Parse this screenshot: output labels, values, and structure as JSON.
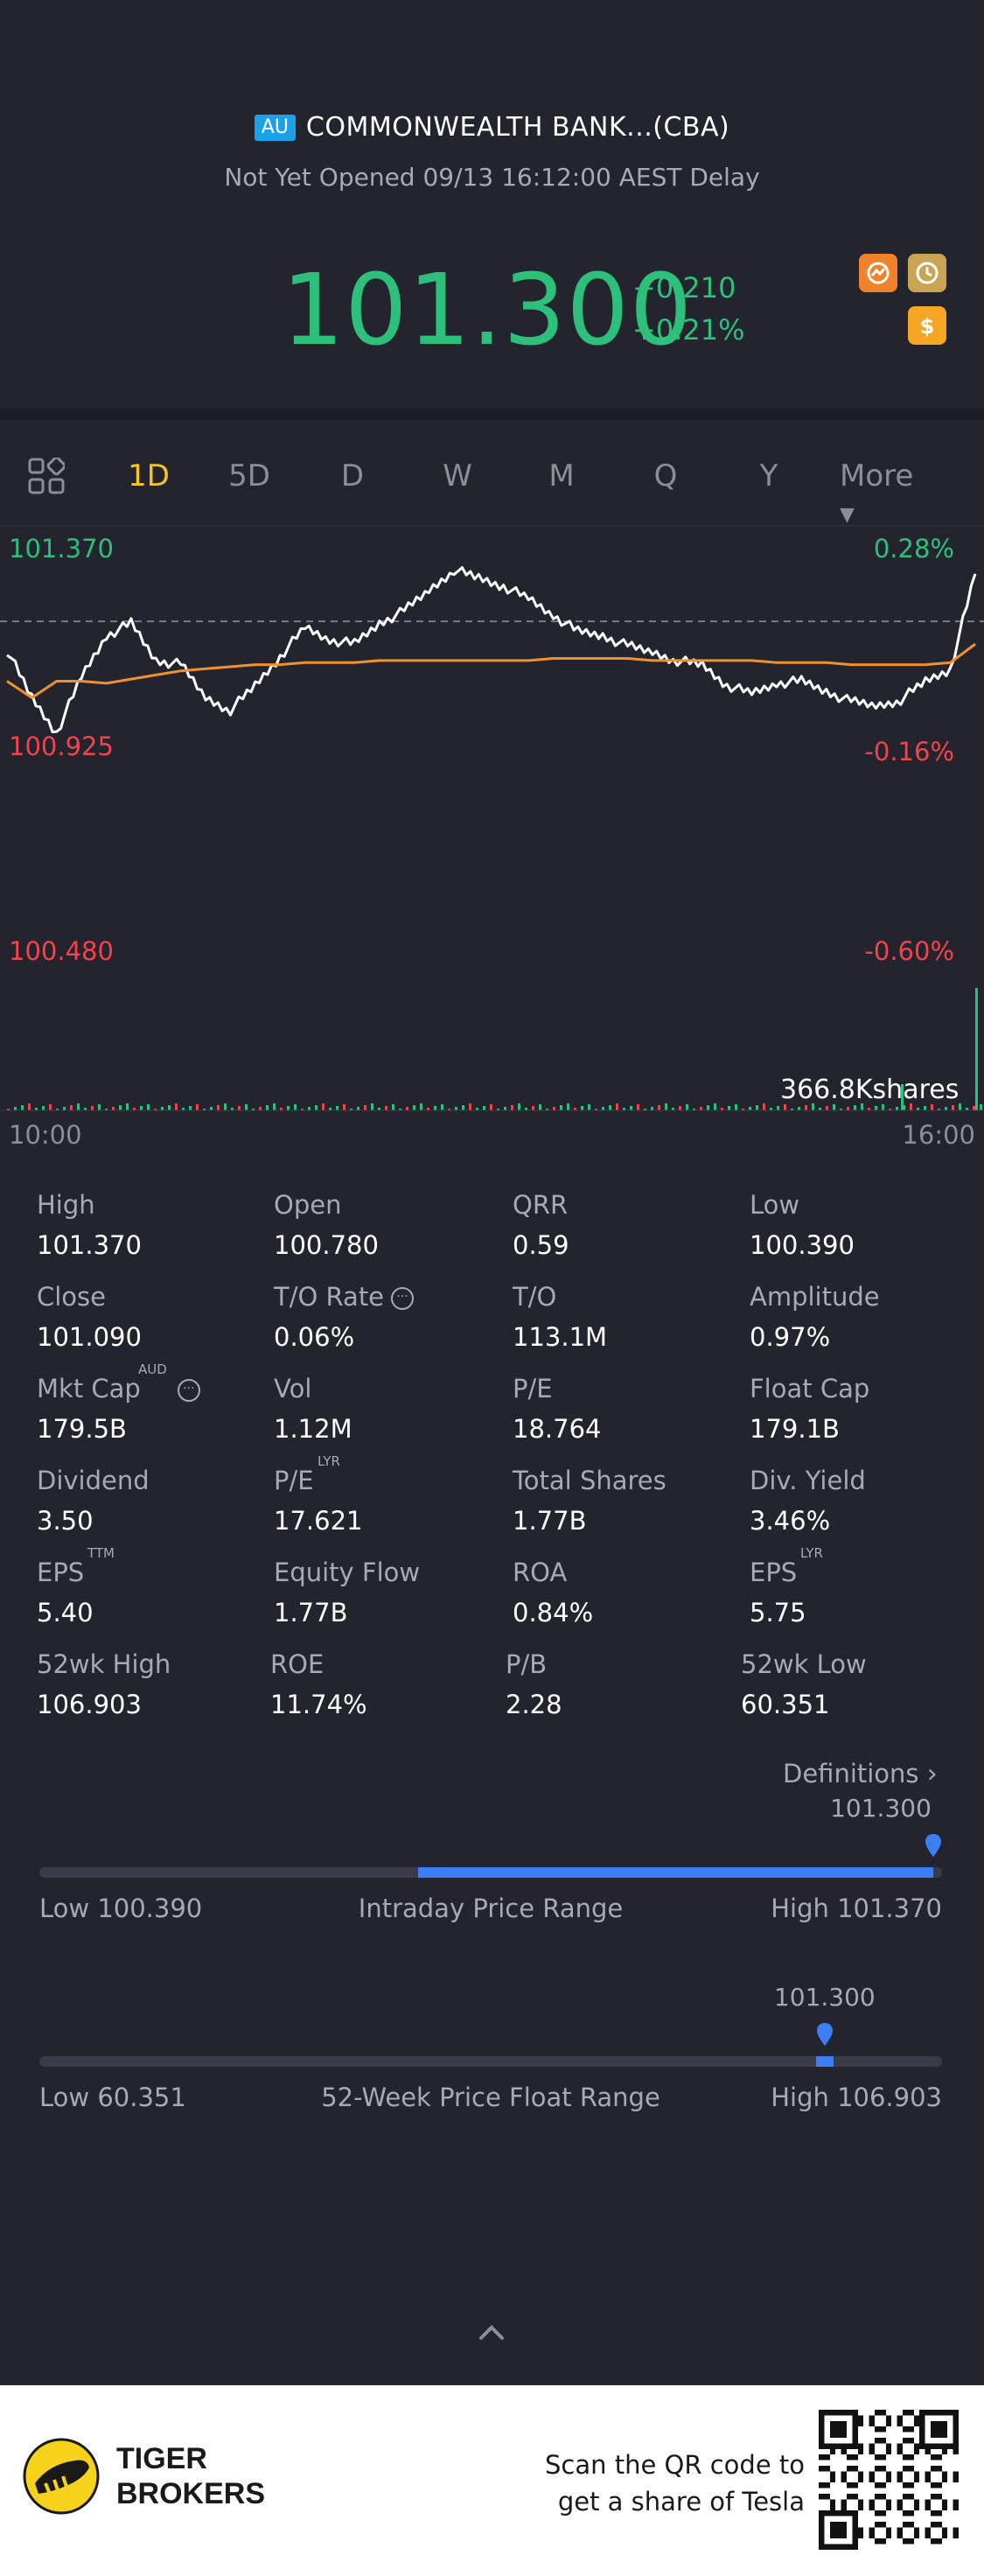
{
  "header": {
    "market_badge": "AU",
    "title": "COMMONWEALTH BANK...(CBA)",
    "status": "Not Yet Opened 09/13 16:12:00 AEST Delay",
    "price": "101.300",
    "change_abs": "+0.210",
    "change_pct": "+0.21%",
    "icons": [
      "chart-badge-icon",
      "clock-icon",
      "dollar-icon"
    ]
  },
  "periods": {
    "tabs": [
      "1D",
      "5D",
      "D",
      "W",
      "M",
      "Q",
      "Y"
    ],
    "active": "1D",
    "more_label": "More"
  },
  "chart": {
    "left_high": "101.370",
    "left_mid": "100.925",
    "left_low": "100.480",
    "right_high": "0.28%",
    "right_mid": "-0.16%",
    "right_low": "-0.60%",
    "volume_label": "366.8Kshares",
    "time_start": "10:00",
    "time_end": "16:00"
  },
  "chart_data": {
    "type": "line",
    "series": [
      {
        "values": [
          100.95,
          100.72,
          100.55,
          100.82,
          101.02,
          101.08,
          100.9,
          100.88,
          100.72,
          100.66,
          100.78,
          100.92,
          101.06,
          101.0,
          100.98,
          101.08,
          101.14,
          101.24,
          101.34,
          101.3,
          101.26,
          101.2,
          101.12,
          101.04,
          101.02,
          100.97,
          100.94,
          100.9,
          100.88,
          100.78,
          100.74,
          100.79,
          100.8,
          100.75,
          100.7,
          100.68,
          100.71,
          100.8,
          100.86,
          101.32
        ]
      },
      {
        "values": [
          100.8,
          100.72,
          100.8,
          100.8,
          100.79,
          100.81,
          100.83,
          100.85,
          100.86,
          100.87,
          100.88,
          100.88,
          100.89,
          100.89,
          100.89,
          100.9,
          100.9,
          100.9,
          100.9,
          100.9,
          100.9,
          100.9,
          100.91,
          100.91,
          100.91,
          100.91,
          100.9,
          100.9,
          100.9,
          100.9,
          100.9,
          100.89,
          100.89,
          100.89,
          100.88,
          100.88,
          100.88,
          100.88,
          100.89,
          100.98
        ]
      }
    ],
    "ylim": [
      100.48,
      101.37
    ],
    "reference": 101.09
  },
  "stats": {
    "items": [
      {
        "label": "High",
        "value": "101.370"
      },
      {
        "label": "Open",
        "value": "100.780"
      },
      {
        "label": "QRR",
        "value": "0.59"
      },
      {
        "label": "Low",
        "value": "100.390"
      },
      {
        "label": "Close",
        "value": "101.090"
      },
      {
        "label": "T/O Rate",
        "value": "0.06%"
      },
      {
        "label": "T/O",
        "value": "113.1M"
      },
      {
        "label": "Amplitude",
        "value": "0.97%"
      },
      {
        "label": "Mkt Cap",
        "value": "179.5B",
        "sup": "AUD"
      },
      {
        "label": "Vol",
        "value": "1.12M"
      },
      {
        "label": "P/E",
        "value": "18.764"
      },
      {
        "label": "Float Cap",
        "value": "179.1B"
      },
      {
        "label": "Dividend",
        "value": "3.50"
      },
      {
        "label": "P/E",
        "value": "17.621",
        "sup": "LYR"
      },
      {
        "label": "Total Shares",
        "value": "1.77B"
      },
      {
        "label": "Div. Yield",
        "value": "3.46%"
      },
      {
        "label": "EPS",
        "value": "5.40",
        "sup": "TTM"
      },
      {
        "label": "Equity Flow",
        "value": "1.77B"
      },
      {
        "label": "ROA",
        "value": "0.84%"
      },
      {
        "label": "EPS",
        "value": "5.75",
        "sup": "LYR"
      },
      {
        "label": "52wk High",
        "value": "106.903"
      },
      {
        "label": "ROE",
        "value": "11.74%"
      },
      {
        "label": "P/B",
        "value": "2.28"
      },
      {
        "label": "52wk Low",
        "value": "60.351"
      }
    ],
    "definitions_label": "Definitions"
  },
  "intraday_range": {
    "current": "101.300",
    "low_label": "Low 100.390",
    "title": "Intraday Price Range",
    "high_label": "High 101.370",
    "fill_start": 0.42,
    "fill_end": 0.99,
    "marker_pos": 0.99
  },
  "week52_range": {
    "current": "101.300",
    "low_label": "Low 60.351",
    "title": "52-Week Price Float Range",
    "high_label": "High 106.903",
    "fill_start": 0.86,
    "fill_end": 0.88,
    "marker_pos": 0.87
  },
  "footer": {
    "brand_line1": "TIGER",
    "brand_line2": "BROKERS",
    "promo_line1": "Scan the QR code to",
    "promo_line2": "get a share of Tesla"
  }
}
